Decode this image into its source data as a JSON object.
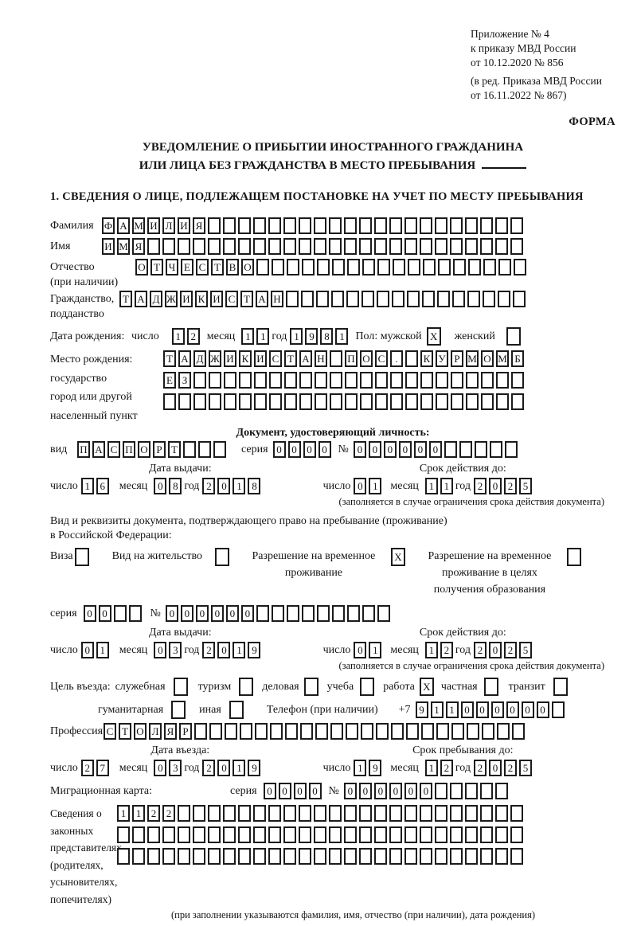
{
  "header": {
    "appendix_lines": [
      "Приложение № 4",
      "к приказу МВД России",
      "от 10.12.2020 № 856"
    ],
    "edition_lines": [
      "(в ред. Приказа МВД России",
      "от 16.11.2022 № 867)"
    ],
    "form_label": "ФОРМА"
  },
  "title": {
    "line1": "УВЕДОМЛЕНИЕ О ПРИБЫТИИ ИНОСТРАННОГО ГРАЖДАНИНА",
    "line2": "ИЛИ ЛИЦА БЕЗ ГРАЖДАНСТВА В МЕСТО ПРЕБЫВАНИЯ"
  },
  "section1": {
    "heading": "1. СВЕДЕНИЯ О ЛИЦЕ, ПОДЛЕЖАЩЕМ ПОСТАНОВКЕ НА УЧЕТ ПО МЕСТУ ПРЕБЫВАНИЯ",
    "surname": {
      "label": "Фамилия",
      "cells": [
        "Ф",
        "А",
        "М",
        "И",
        "Л",
        "И",
        "Я",
        "",
        "",
        "",
        "",
        "",
        "",
        "",
        "",
        "",
        "",
        "",
        "",
        "",
        "",
        "",
        "",
        "",
        "",
        "",
        "",
        ""
      ]
    },
    "given_name": {
      "label": "Имя",
      "cells": [
        "И",
        "М",
        "Я",
        "",
        "",
        "",
        "",
        "",
        "",
        "",
        "",
        "",
        "",
        "",
        "",
        "",
        "",
        "",
        "",
        "",
        "",
        "",
        "",
        "",
        "",
        "",
        "",
        ""
      ]
    },
    "patronymic": {
      "label": "Отчество",
      "label2": "(при наличии)",
      "cells": [
        "О",
        "Т",
        "Ч",
        "Е",
        "С",
        "Т",
        "В",
        "О",
        "",
        "",
        "",
        "",
        "",
        "",
        "",
        "",
        "",
        "",
        "",
        "",
        "",
        "",
        "",
        "",
        "",
        ""
      ]
    },
    "citizenship": {
      "label": "Гражданство,",
      "label2": "подданство",
      "cells": [
        "Т",
        "А",
        "Д",
        "Ж",
        "И",
        "К",
        "И",
        "С",
        "Т",
        "А",
        "Н",
        "",
        "",
        "",
        "",
        "",
        "",
        "",
        "",
        "",
        "",
        "",
        "",
        "",
        "",
        "",
        ""
      ]
    },
    "birth_date": {
      "label": "Дата рождения:",
      "day_label": "число",
      "day": [
        "1",
        "2"
      ],
      "month_label": "месяц",
      "month": [
        "1",
        "1"
      ],
      "year_label": "год",
      "year": [
        "1",
        "9",
        "8",
        "1"
      ]
    },
    "gender": {
      "male_label": "Пол: мужской",
      "male": "X",
      "female_label": "женский",
      "female": ""
    },
    "birth_place": {
      "label_lines": [
        "Место рождения:",
        "государство",
        "город или другой",
        "населенный пункт"
      ],
      "row1": [
        "Т",
        "А",
        "Д",
        "Ж",
        "И",
        "К",
        "И",
        "С",
        "Т",
        "А",
        "Н",
        "",
        "П",
        "О",
        "С",
        ".",
        "",
        "К",
        "У",
        "Р",
        "М",
        "О",
        "М",
        "Б"
      ],
      "row2": [
        "Е",
        "З",
        "",
        "",
        "",
        "",
        "",
        "",
        "",
        "",
        "",
        "",
        "",
        "",
        "",
        "",
        "",
        "",
        "",
        "",
        "",
        "",
        "",
        ""
      ],
      "row3": [
        "",
        "",
        "",
        "",
        "",
        "",
        "",
        "",
        "",
        "",
        "",
        "",
        "",
        "",
        "",
        "",
        "",
        "",
        "",
        "",
        "",
        "",
        "",
        ""
      ]
    },
    "identity_doc": {
      "heading": "Документ, удостоверяющий личность:",
      "kind_label": "вид",
      "kind": [
        "П",
        "А",
        "С",
        "П",
        "О",
        "Р",
        "Т",
        "",
        "",
        ""
      ],
      "series_label": "серия",
      "series": [
        "0",
        "0",
        "0",
        "0"
      ],
      "number_label": "№",
      "number": [
        "0",
        "0",
        "0",
        "0",
        "0",
        "0",
        "",
        "",
        "",
        "",
        ""
      ],
      "issue_heading": "Дата выдачи:",
      "issue": {
        "day_label": "число",
        "day": [
          "1",
          "6"
        ],
        "month_label": "месяц",
        "month": [
          "0",
          "8"
        ],
        "year_label": "год",
        "year": [
          "2",
          "0",
          "1",
          "8"
        ]
      },
      "valid_heading": "Срок действия до:",
      "valid": {
        "day_label": "число",
        "day": [
          "0",
          "1"
        ],
        "month_label": "месяц",
        "month": [
          "1",
          "1"
        ],
        "year_label": "год",
        "year": [
          "2",
          "0",
          "2",
          "5"
        ]
      },
      "note": "(заполняется в случае ограничения срока действия документа)"
    },
    "residence_doc": {
      "intro_line1": "Вид и реквизиты документа, подтверждающего право на пребывание (проживание)",
      "intro_line2": "в Российской Федерации:",
      "visa": {
        "label": "Виза",
        "value": ""
      },
      "residence_permit": {
        "label": "Вид на жительство",
        "value": ""
      },
      "temp_permit": {
        "label": "Разрешение на временное проживание",
        "value": "X"
      },
      "edu_permit": {
        "label": "Разрешение на временное проживание в целях получения образования",
        "value": ""
      },
      "series_label": "серия",
      "series": [
        "0",
        "0",
        "",
        ""
      ],
      "number_label": "№",
      "number": [
        "0",
        "0",
        "0",
        "0",
        "0",
        "0",
        "",
        "",
        "",
        "",
        "",
        "",
        "",
        "",
        ""
      ],
      "issue_heading": "Дата выдачи:",
      "issue": {
        "day_label": "число",
        "day": [
          "0",
          "1"
        ],
        "month_label": "месяц",
        "month": [
          "0",
          "3"
        ],
        "year_label": "год",
        "year": [
          "2",
          "0",
          "1",
          "9"
        ]
      },
      "valid_heading": "Срок действия до:",
      "valid": {
        "day_label": "число",
        "day": [
          "0",
          "1"
        ],
        "month_label": "месяц",
        "month": [
          "1",
          "2"
        ],
        "year_label": "год",
        "year": [
          "2",
          "0",
          "2",
          "5"
        ]
      },
      "note": "(заполняется в случае ограничения срока действия документа)"
    },
    "purpose": {
      "intro": "Цель въезда:",
      "o1": {
        "label": "служебная",
        "value": ""
      },
      "o2": {
        "label": "туризм",
        "value": ""
      },
      "o3": {
        "label": "деловая",
        "value": ""
      },
      "o4": {
        "label": "учеба",
        "value": ""
      },
      "o5": {
        "label": "работа",
        "value": "X"
      },
      "o6": {
        "label": "частная",
        "value": ""
      },
      "o7": {
        "label": "транзит",
        "value": ""
      },
      "o8": {
        "label": "гуманитарная",
        "value": ""
      },
      "o9": {
        "label": "иная",
        "value": ""
      }
    },
    "phone": {
      "label": "Телефон (при наличии)",
      "prefix": "+7",
      "cells": [
        "9",
        "1",
        "1",
        "0",
        "0",
        "0",
        "0",
        "0",
        "0",
        ""
      ]
    },
    "profession": {
      "label": "Профессия",
      "cells": [
        "С",
        "Т",
        "О",
        "Л",
        "Я",
        "Р",
        "",
        "",
        "",
        "",
        "",
        "",
        "",
        "",
        "",
        "",
        "",
        "",
        "",
        "",
        "",
        "",
        "",
        "",
        "",
        "",
        "",
        ""
      ]
    },
    "entry_heading": "Дата въезда:",
    "entry": {
      "day_label": "число",
      "day": [
        "2",
        "7"
      ],
      "month_label": "месяц",
      "month": [
        "0",
        "3"
      ],
      "year_label": "год",
      "year": [
        "2",
        "0",
        "1",
        "9"
      ]
    },
    "stay_heading": "Срок пребывания до:",
    "stay": {
      "day_label": "число",
      "day": [
        "1",
        "9"
      ],
      "month_label": "месяц",
      "month": [
        "1",
        "2"
      ],
      "year_label": "год",
      "year": [
        "2",
        "0",
        "2",
        "5"
      ]
    },
    "migration_card": {
      "label": "Миграционная карта:",
      "series_label": "серия",
      "series": [
        "0",
        "0",
        "0",
        "0"
      ],
      "number_label": "№",
      "number": [
        "0",
        "0",
        "0",
        "0",
        "0",
        "0",
        "",
        "",
        "",
        "",
        ""
      ]
    },
    "representatives": {
      "label_lines": [
        "Сведения о",
        "законных",
        "представителях",
        "(родителях,",
        "усыновителях,",
        "попечителях)"
      ],
      "row1": [
        "1",
        "1",
        "2",
        "2",
        "",
        "",
        "",
        "",
        "",
        "",
        "",
        "",
        "",
        "",
        "",
        "",
        "",
        "",
        "",
        "",
        "",
        "",
        "",
        "",
        "",
        "",
        ""
      ],
      "row2": [
        "",
        "",
        "",
        "",
        "",
        "",
        "",
        "",
        "",
        "",
        "",
        "",
        "",
        "",
        "",
        "",
        "",
        "",
        "",
        "",
        "",
        "",
        "",
        "",
        "",
        "",
        ""
      ],
      "row3": [
        "",
        "",
        "",
        "",
        "",
        "",
        "",
        "",
        "",
        "",
        "",
        "",
        "",
        "",
        "",
        "",
        "",
        "",
        "",
        "",
        "",
        "",
        "",
        "",
        "",
        "",
        ""
      ],
      "note": "(при заполнении указываются фамилия, имя, отчество (при наличии), дата рождения)"
    }
  }
}
